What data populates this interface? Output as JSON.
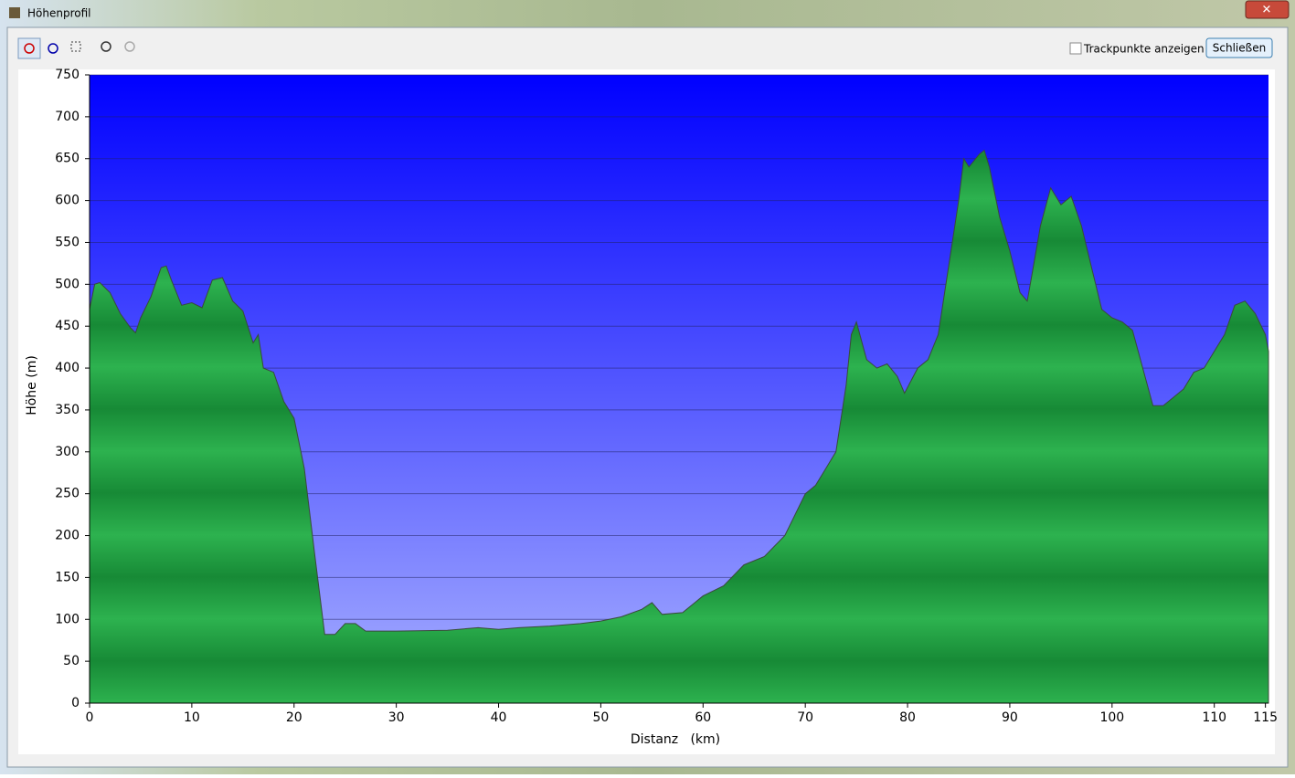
{
  "window": {
    "title": "Höhenprofil"
  },
  "toolbar": {
    "checkbox_label": "Trackpunkte anzeigen",
    "button_label": "Schließen"
  },
  "chart_data": {
    "type": "area",
    "x_label": "Distanz   (km)",
    "y_label": "Höhe (m)",
    "x": [
      0,
      0.5,
      1,
      2,
      3,
      4,
      4.5,
      5,
      6,
      7,
      7.5,
      8,
      9,
      10,
      11,
      12,
      13,
      14,
      15,
      16,
      16.5,
      17,
      18,
      19,
      20,
      21,
      22,
      23,
      24,
      25,
      26,
      27,
      28,
      30,
      35,
      38,
      40,
      42,
      45,
      48,
      50,
      52,
      54,
      55,
      56,
      58,
      60,
      62,
      64,
      66,
      68,
      70,
      71,
      72,
      73,
      74,
      74.5,
      75,
      76,
      77,
      78,
      79,
      79.7,
      81,
      82,
      83,
      84,
      85,
      85.5,
      86,
      87,
      87.5,
      88,
      89,
      90,
      91,
      91.7,
      92,
      93,
      94,
      95,
      96,
      97,
      98,
      99,
      100,
      101,
      102,
      103,
      104,
      105,
      106,
      107,
      108,
      109,
      110,
      111,
      112,
      113,
      114,
      115,
      115.3
    ],
    "values": [
      470,
      500,
      502,
      490,
      465,
      448,
      442,
      460,
      485,
      520,
      522,
      505,
      475,
      478,
      472,
      505,
      508,
      480,
      468,
      430,
      440,
      400,
      395,
      360,
      340,
      280,
      180,
      82,
      82,
      95,
      95,
      86,
      86,
      86,
      87,
      90,
      88,
      90,
      92,
      95,
      98,
      103,
      112,
      120,
      106,
      108,
      128,
      140,
      165,
      175,
      200,
      250,
      260,
      280,
      300,
      380,
      440,
      455,
      410,
      400,
      405,
      390,
      370,
      400,
      410,
      440,
      520,
      600,
      650,
      640,
      655,
      660,
      640,
      580,
      540,
      490,
      480,
      500,
      570,
      615,
      595,
      605,
      570,
      520,
      470,
      460,
      455,
      445,
      400,
      355,
      355,
      365,
      375,
      395,
      400,
      420,
      440,
      475,
      480,
      465,
      440,
      420
    ],
    "color": "#22a848",
    "xlim": [
      0,
      115.3
    ],
    "ylim": [
      0,
      750
    ],
    "xticks": [
      0,
      10,
      20,
      30,
      40,
      50,
      60,
      70,
      80,
      90,
      100,
      110,
      115
    ],
    "yticks": [
      0,
      50,
      100,
      150,
      200,
      250,
      300,
      350,
      400,
      450,
      500,
      550,
      600,
      650,
      700,
      750
    ],
    "grid": true
  }
}
